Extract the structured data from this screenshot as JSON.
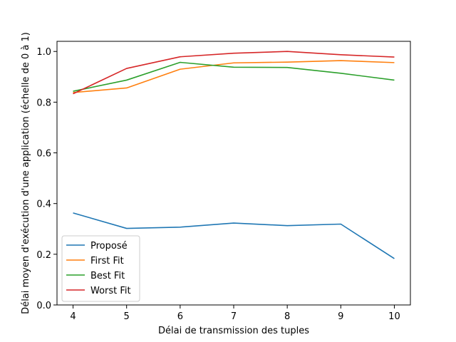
{
  "chart_data": {
    "type": "line",
    "title": "",
    "xlabel": "Délai de transmission des tuples",
    "ylabel": "Délai moyen d'exécution d'une application (échelle de 0 à 1)",
    "x": [
      4,
      5,
      6,
      7,
      8,
      9,
      10
    ],
    "xlim": [
      3.7,
      10.3
    ],
    "ylim": [
      0.0,
      1.04
    ],
    "xticks": [
      "4",
      "5",
      "6",
      "7",
      "8",
      "9",
      "10"
    ],
    "yticks": [
      "0.0",
      "0.2",
      "0.4",
      "0.6",
      "0.8",
      "1.0"
    ],
    "grid": false,
    "legend_position": "lower-left",
    "series": [
      {
        "name": "Proposé",
        "color": "#1f77b4",
        "values": [
          0.363,
          0.302,
          0.307,
          0.323,
          0.313,
          0.319,
          0.183
        ]
      },
      {
        "name": "First Fit",
        "color": "#ff7f0e",
        "values": [
          0.838,
          0.856,
          0.93,
          0.955,
          0.958,
          0.964,
          0.956
        ]
      },
      {
        "name": "Best Fit",
        "color": "#2ca02c",
        "values": [
          0.843,
          0.887,
          0.957,
          0.938,
          0.937,
          0.914,
          0.887
        ]
      },
      {
        "name": "Worst Fit",
        "color": "#d62728",
        "values": [
          0.833,
          0.933,
          0.979,
          0.993,
          1.0,
          0.987,
          0.978
        ]
      }
    ]
  }
}
